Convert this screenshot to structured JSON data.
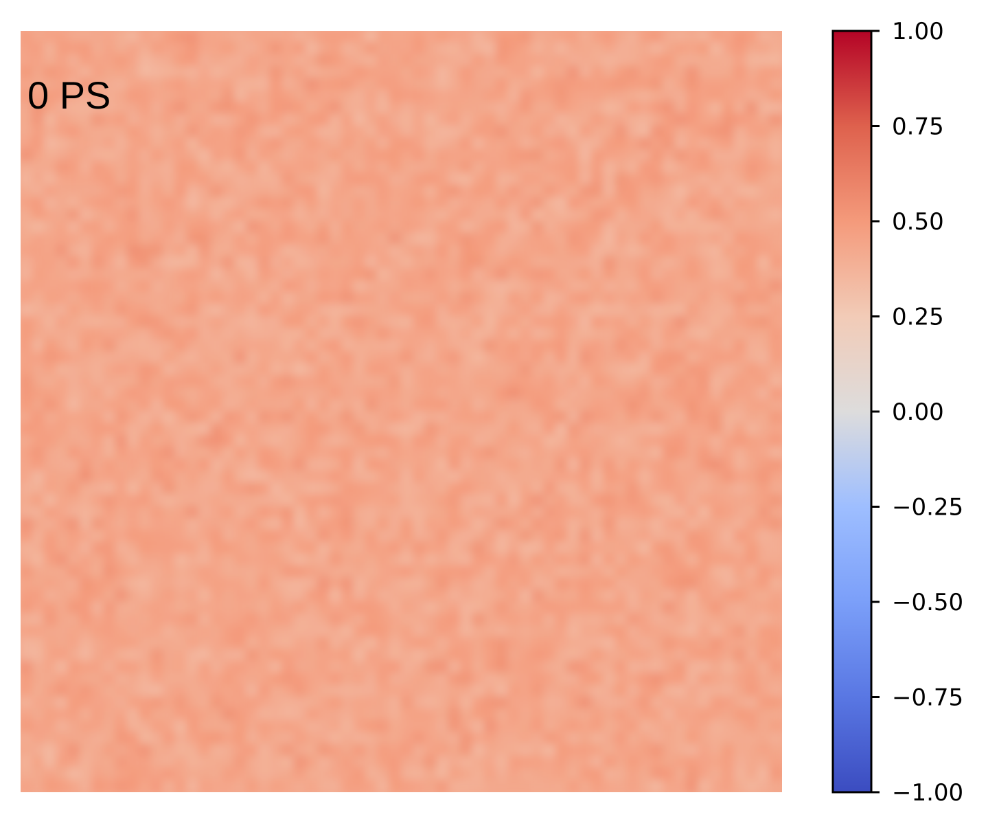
{
  "chart_data": {
    "type": "heatmap",
    "annotation": "0 PS",
    "colormap": "coolwarm",
    "colorbar": {
      "vmin": -1.0,
      "vmax": 1.0,
      "ticks": [
        1.0,
        0.75,
        0.5,
        0.25,
        0.0,
        -0.25,
        -0.5,
        -0.75,
        -1.0
      ],
      "tick_labels": [
        "1.00",
        "0.75",
        "0.50",
        "0.25",
        "0.00",
        "−0.25",
        "−0.50",
        "−0.75",
        "−1.00"
      ],
      "colors": [
        "#3b4cc0",
        "#6788ee",
        "#9abbff",
        "#c9d7f0",
        "#dddcdc",
        "#f2cbb7",
        "#f49a7b",
        "#d95847",
        "#b40426"
      ]
    },
    "field": {
      "mean_value": 0.42,
      "min_value": 0.33,
      "max_value": 0.55,
      "grid": [
        64,
        64
      ],
      "description_colors": {
        "light": "#f6b8a0",
        "mid": "#f3a487",
        "dark": "#ec8a6c"
      }
    },
    "axes_visible": false
  }
}
